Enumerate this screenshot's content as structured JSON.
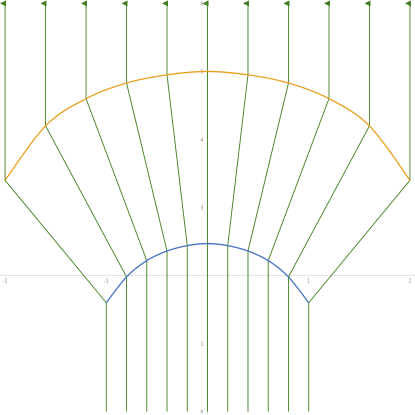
{
  "chart_data": {
    "type": "line",
    "title": "",
    "xlabel": "",
    "ylabel": "",
    "xlim": [
      -2.05,
      2.05
    ],
    "ylim": [
      -0.05,
      6.05
    ],
    "grid": false,
    "x_axis_at_y": 2,
    "x_ticks": [
      "-2",
      "-1",
      "1",
      "2"
    ],
    "x_tick_values": [
      -2,
      -1,
      1,
      2
    ],
    "y_ticks": [
      "0",
      "1",
      "3",
      "4",
      "5",
      "6"
    ],
    "y_tick_values": [
      0,
      1,
      3,
      4,
      5,
      6
    ],
    "colors": {
      "rays": "#3f7f1f",
      "inner_arc": "#4472c4",
      "outer_arc": "#e8a020",
      "axis": "#d8d8d8"
    },
    "series": [
      {
        "role": "rays",
        "ray_count": 11,
        "ray_x_bottom": [
          -1.0,
          -0.8,
          -0.6,
          -0.4,
          -0.2,
          0.0,
          0.2,
          0.4,
          0.6,
          0.8,
          1.0
        ],
        "ray_x_top": [
          -2.0,
          -1.6,
          -1.2,
          -0.8,
          -0.4,
          0.0,
          0.4,
          0.8,
          1.2,
          1.6,
          2.0
        ],
        "y_start": 0.0,
        "y_inner_edge": 1.6,
        "y_outer_edge": 3.4,
        "y_end": 6.0,
        "inner_arc_y": [
          1.6,
          1.98,
          2.22,
          2.36,
          2.44,
          2.47,
          2.44,
          2.36,
          2.22,
          1.98,
          1.6
        ],
        "outer_arc_y": [
          3.4,
          4.2,
          4.6,
          4.83,
          4.95,
          5.0,
          4.95,
          4.83,
          4.6,
          4.2,
          3.4
        ]
      },
      {
        "role": "inner_arc",
        "x": [
          -1.0,
          -0.8,
          -0.6,
          -0.4,
          -0.2,
          0.0,
          0.2,
          0.4,
          0.6,
          0.8,
          1.0
        ],
        "y": [
          1.6,
          1.98,
          2.22,
          2.36,
          2.44,
          2.47,
          2.44,
          2.36,
          2.22,
          1.98,
          1.6
        ]
      },
      {
        "role": "outer_arc",
        "x": [
          -2.0,
          -1.6,
          -1.2,
          -0.8,
          -0.4,
          0.0,
          0.4,
          0.8,
          1.2,
          1.6,
          2.0
        ],
        "y": [
          3.4,
          4.2,
          4.6,
          4.83,
          4.95,
          5.0,
          4.95,
          4.83,
          4.6,
          4.2,
          3.4
        ]
      }
    ]
  }
}
